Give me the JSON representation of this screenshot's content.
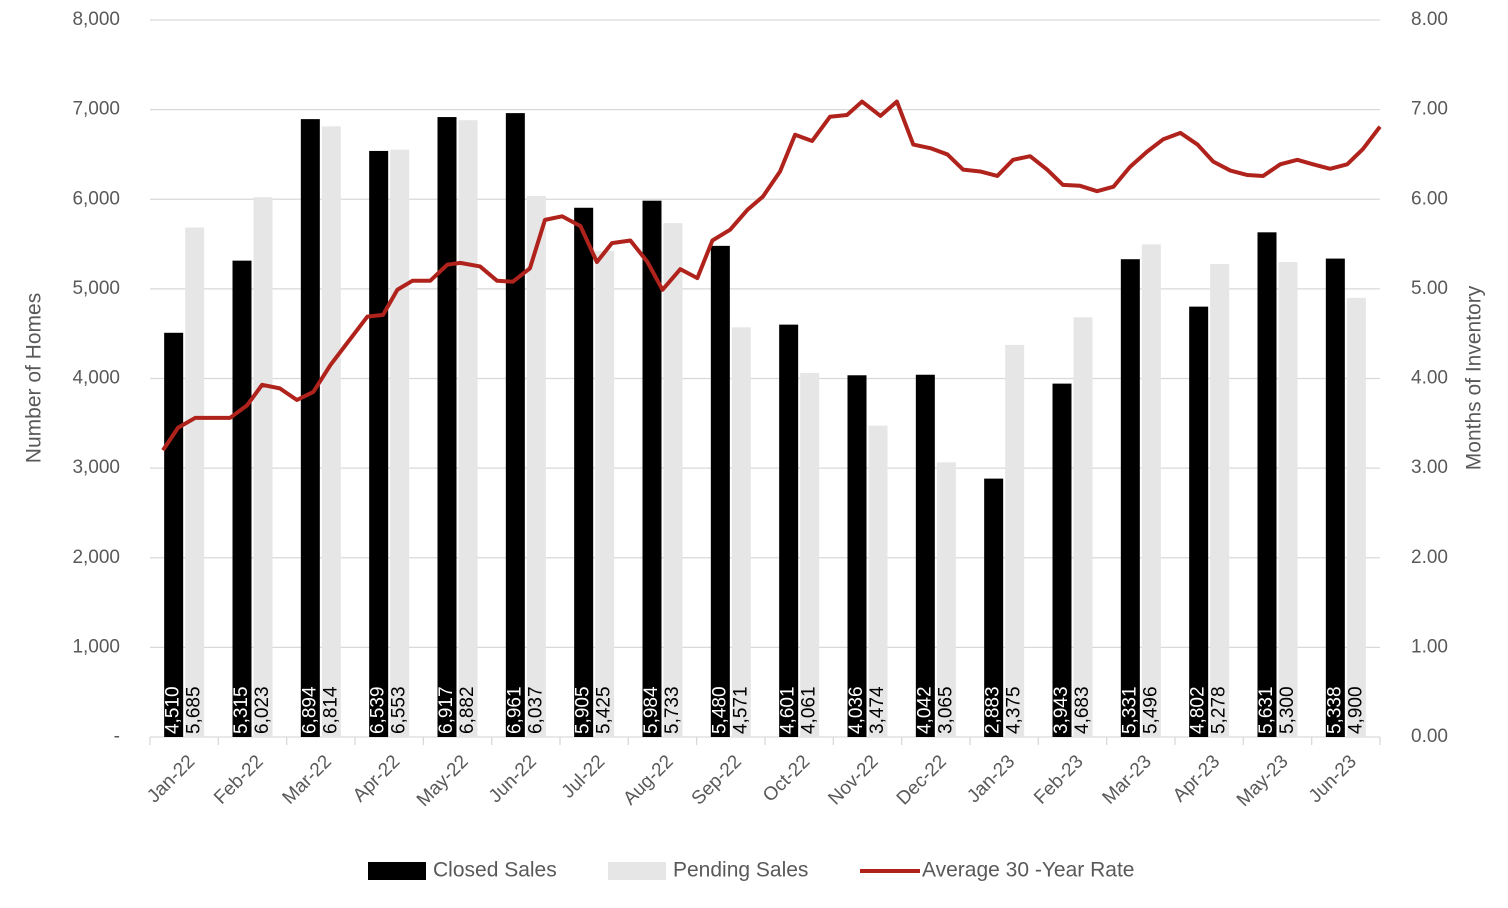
{
  "chart_data": {
    "type": "bar",
    "y_label": "Number of Homes",
    "y2_label": "Months of Inventory",
    "categories": [
      "Jan-22",
      "Feb-22",
      "Mar-22",
      "Apr-22",
      "May-22",
      "Jun-22",
      "Jul-22",
      "Aug-22",
      "Sep-22",
      "Oct-22",
      "Nov-22",
      "Dec-22",
      "Jan-23",
      "Feb-23",
      "Mar-23",
      "Apr-23",
      "May-23",
      "Jun-23"
    ],
    "series": [
      {
        "name": "Closed Sales",
        "color": "#000000",
        "label_color": "#ffffff",
        "values": [
          4510,
          5315,
          6894,
          6539,
          6917,
          6961,
          5905,
          5984,
          5480,
          4601,
          4036,
          4042,
          2883,
          3943,
          5331,
          4802,
          5631,
          5338
        ],
        "value_labels": [
          "4,510",
          "5,315",
          "6,894",
          "6,539",
          "6,917",
          "6,961",
          "5,905",
          "5,984",
          "5,480",
          "4,601",
          "4,036",
          "4,042",
          "2,883",
          "3,943",
          "5,331",
          "4,802",
          "5,631",
          "5,338"
        ]
      },
      {
        "name": "Pending Sales",
        "color": "#e6e6e6",
        "label_color": "#000000",
        "values": [
          5685,
          6023,
          6814,
          6553,
          6882,
          6037,
          5425,
          5733,
          4571,
          4061,
          3474,
          3065,
          4375,
          4683,
          5496,
          5278,
          5300,
          4900
        ],
        "value_labels": [
          "5,685",
          "6,023",
          "6,814",
          "6,553",
          "6,882",
          "6,037",
          "5,425",
          "5,733",
          "4,571",
          "4,061",
          "3,474",
          "3,065",
          "4,375",
          "4,683",
          "5,496",
          "5,278",
          "5,300",
          "4,900"
        ]
      },
      {
        "name": "Average 30 -Year Rate",
        "type": "line",
        "axis": "y2",
        "color": "#b0231c",
        "x": [
          -0.31,
          -0.09,
          0.16,
          0.41,
          0.67,
          0.92,
          1.14,
          1.4,
          1.65,
          1.89,
          2.14,
          2.4,
          2.68,
          2.91,
          3.12,
          3.34,
          3.6,
          3.85,
          4.04,
          4.33,
          4.58,
          4.81,
          5.06,
          5.28,
          5.53,
          5.8,
          6.04,
          6.26,
          6.53,
          6.78,
          7.0,
          7.26,
          7.51,
          7.73,
          7.99,
          8.24,
          8.47,
          8.72,
          8.94,
          9.19,
          9.45,
          9.7,
          9.92,
          10.19,
          10.43,
          10.67,
          10.92,
          11.17,
          11.4,
          11.65,
          11.9,
          12.13,
          12.38,
          12.63,
          12.86,
          13.11,
          13.36,
          13.6,
          13.84,
          14.09,
          14.33,
          14.58,
          14.83,
          15.06,
          15.31,
          15.56,
          15.79,
          16.04,
          16.29,
          16.52,
          16.77,
          17.02,
          17.25,
          17.5
        ],
        "values": [
          3.2,
          3.45,
          3.56,
          3.56,
          3.56,
          3.7,
          3.93,
          3.89,
          3.76,
          3.85,
          4.15,
          4.41,
          4.69,
          4.71,
          4.99,
          5.09,
          5.09,
          5.27,
          5.29,
          5.25,
          5.09,
          5.08,
          5.23,
          5.77,
          5.81,
          5.7,
          5.3,
          5.51,
          5.54,
          5.3,
          4.99,
          5.22,
          5.12,
          5.54,
          5.66,
          5.88,
          6.03,
          6.31,
          6.72,
          6.65,
          6.92,
          6.94,
          7.09,
          6.93,
          7.09,
          6.61,
          6.57,
          6.5,
          6.33,
          6.31,
          6.26,
          6.44,
          6.48,
          6.33,
          6.16,
          6.15,
          6.09,
          6.14,
          6.36,
          6.53,
          6.67,
          6.74,
          6.61,
          6.42,
          6.32,
          6.27,
          6.26,
          6.39,
          6.44,
          6.39,
          6.34,
          6.39,
          6.56,
          6.81
        ]
      }
    ],
    "ylim": [
      0,
      8000
    ],
    "yticks": [
      {
        "value": 0,
        "label": "-"
      },
      {
        "value": 1000,
        "label": "1,000"
      },
      {
        "value": 2000,
        "label": "2,000"
      },
      {
        "value": 3000,
        "label": "3,000"
      },
      {
        "value": 4000,
        "label": "4,000"
      },
      {
        "value": 5000,
        "label": "5,000"
      },
      {
        "value": 6000,
        "label": "6,000"
      },
      {
        "value": 7000,
        "label": "7,000"
      },
      {
        "value": 8000,
        "label": "8,000"
      }
    ],
    "y2lim": [
      0,
      8
    ],
    "y2ticks": [
      {
        "value": 0,
        "label": "0.00"
      },
      {
        "value": 1,
        "label": "1.00"
      },
      {
        "value": 2,
        "label": "2.00"
      },
      {
        "value": 3,
        "label": "3.00"
      },
      {
        "value": 4,
        "label": "4.00"
      },
      {
        "value": 5,
        "label": "5.00"
      },
      {
        "value": 6,
        "label": "6.00"
      },
      {
        "value": 7,
        "label": "7.00"
      },
      {
        "value": 8,
        "label": "8.00"
      }
    ],
    "grid": true,
    "legend": "bottom"
  }
}
